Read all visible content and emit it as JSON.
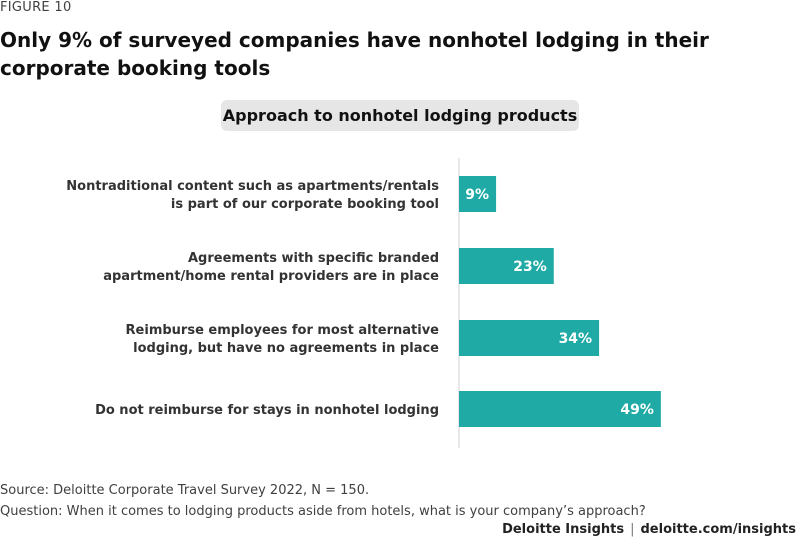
{
  "figure_label": "FIGURE 10",
  "title": "Only 9% of surveyed companies have nonhotel lodging in their corporate booking tools",
  "chart_data": {
    "type": "bar",
    "orientation": "horizontal",
    "title": "Approach to nonhotel lodging products",
    "categories": [
      [
        "Nontraditional content such as apartments/rentals",
        "is part of our corporate booking tool"
      ],
      [
        "Agreements with specific branded",
        "apartment/home rental providers are in place"
      ],
      [
        "Reimburse employees for most alternative",
        "lodging, but have no agreements in place"
      ],
      [
        "Do not reimburse for stays in nonhotel lodging"
      ]
    ],
    "values": [
      9,
      23,
      34,
      49
    ],
    "value_labels": [
      "9%",
      "23%",
      "34%",
      "49%"
    ],
    "xlim": [
      0,
      100
    ],
    "bar_color": "#1faaa5",
    "grid": false,
    "legend": "none"
  },
  "source": "Source: Deloitte Corporate Travel Survey 2022, N = 150.",
  "question": "Question: When it comes to lodging products aside from hotels, what is your company’s approach?",
  "credit": {
    "brand": "Deloitte Insights",
    "separator": "|",
    "url": "deloitte.com/insights"
  }
}
